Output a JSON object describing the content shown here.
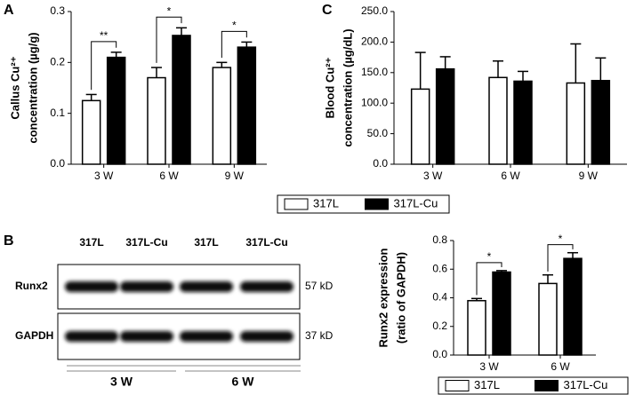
{
  "chart_data": [
    {
      "type": "bar",
      "panel": "A",
      "ylabel": [
        "Callus Cu²⁺",
        "concentration (µg/g)"
      ],
      "categories": [
        "3 W",
        "6 W",
        "9 W"
      ],
      "series": [
        {
          "name": "317L",
          "color": "#ffffff",
          "values": [
            0.125,
            0.17,
            0.19
          ],
          "errors": [
            0.012,
            0.02,
            0.01
          ]
        },
        {
          "name": "317L-Cu",
          "color": "#000000",
          "values": [
            0.21,
            0.253,
            0.23
          ],
          "errors": [
            0.01,
            0.015,
            0.01
          ]
        }
      ],
      "ylim": [
        0,
        0.3
      ],
      "yticks": [
        {
          "value": 0,
          "label": "0.0"
        },
        0.1,
        0.2,
        0.3
      ],
      "significance": [
        {
          "category": 0,
          "label": "**"
        },
        {
          "category": 1,
          "label": "*"
        },
        {
          "category": 2,
          "label": "*"
        }
      ]
    },
    {
      "type": "bar",
      "panel": "C",
      "ylabel": [
        "Blood Cu²⁺",
        "concentration (µg/dL)"
      ],
      "categories": [
        "3 W",
        "6 W",
        "9 W"
      ],
      "series": [
        {
          "color": "#ffffff",
          "values": [
            123,
            142,
            133
          ],
          "errors": [
            60,
            27,
            64
          ]
        },
        {
          "color": "#000000",
          "values": [
            156,
            136,
            137
          ],
          "errors": [
            20,
            16,
            37
          ]
        }
      ],
      "ylim": [
        0,
        250
      ],
      "yticks": [
        {
          "value": 0,
          "label": "0.0"
        },
        {
          "value": 50,
          "label": "50.0"
        },
        {
          "value": 100,
          "label": "100.0"
        },
        {
          "value": 150,
          "label": "150.0"
        },
        {
          "value": 200,
          "label": "200.0"
        },
        {
          "value": 250,
          "label": "250.0"
        }
      ],
      "significance": []
    },
    {
      "type": "bar",
      "panel": "B",
      "ylabel": [
        "Runx2 expression",
        "(ratio of GAPDH)"
      ],
      "categories": [
        "3 W",
        "6 W"
      ],
      "series": [
        {
          "name": "317L",
          "color": "#ffffff",
          "values": [
            0.38,
            0.5
          ],
          "errors": [
            0.015,
            0.06
          ]
        },
        {
          "name": "317L-Cu",
          "color": "#000000",
          "values": [
            0.58,
            0.675
          ],
          "errors": [
            0.01,
            0.04
          ]
        }
      ],
      "ylim": [
        0,
        0.8
      ],
      "yticks": [
        {
          "value": 0,
          "label": "0.0"
        },
        0.2,
        0.4,
        0.6,
        0.8
      ],
      "significance": [
        {
          "category": 0,
          "label": "*"
        },
        {
          "category": 1,
          "label": "*"
        }
      ]
    }
  ],
  "blot": {
    "columns": [
      "317L",
      "317L-Cu",
      "317L",
      "317L-Cu"
    ],
    "rows": [
      {
        "name": "Runx2",
        "size": "57 kD"
      },
      {
        "name": "GAPDH",
        "size": "37 kD"
      }
    ],
    "groups": [
      "3 W",
      "6 W"
    ]
  }
}
